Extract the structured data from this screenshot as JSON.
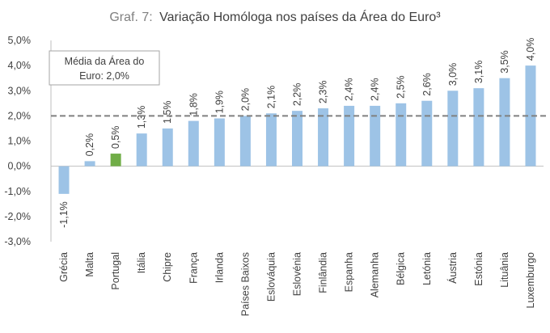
{
  "chart_data": {
    "type": "bar",
    "title_prefix": "Graf. 7:",
    "title": "Variação Homóloga nos países da Área do Euro³",
    "xlabel": "",
    "ylabel": "",
    "ylim": [
      -3,
      5
    ],
    "yticks": [
      "-3,0%",
      "-2,0%",
      "-1,0%",
      "0,0%",
      "1,0%",
      "2,0%",
      "3,0%",
      "4,0%",
      "5,0%"
    ],
    "categories": [
      "Grécia",
      "Malta",
      "Portugal",
      "Itália",
      "Chipre",
      "França",
      "Irlanda",
      "Países Baixos",
      "Eslováquia",
      "Eslovénia",
      "Finlândia",
      "Espanha",
      "Alemanha",
      "Bélgica",
      "Letónia",
      "Áustria",
      "Estónia",
      "Lituânia",
      "Luxemburgo"
    ],
    "values": [
      -1.1,
      0.2,
      0.5,
      1.3,
      1.5,
      1.8,
      1.9,
      2.0,
      2.1,
      2.2,
      2.3,
      2.4,
      2.4,
      2.5,
      2.6,
      3.0,
      3.1,
      3.5,
      4.0
    ],
    "data_labels": [
      "-1,1%",
      "0,2%",
      "0,5%",
      "1,3%",
      "1,5%",
      "1,8%",
      "1,9%",
      "2,0%",
      "2,1%",
      "2,2%",
      "2,3%",
      "2,4%",
      "2,4%",
      "2,5%",
      "2,6%",
      "3,0%",
      "3,1%",
      "3,5%",
      "4,0%"
    ],
    "reference_line": {
      "value": 2.0
    },
    "annotation": {
      "line1": "Média da Área do",
      "line2": "Euro: 2,0%"
    },
    "colors": {
      "bar": "#9DC3E6",
      "highlight": "#70AD47",
      "reference": "#808080",
      "text": "#404040"
    },
    "highlight_category": "Portugal",
    "grid": false
  }
}
